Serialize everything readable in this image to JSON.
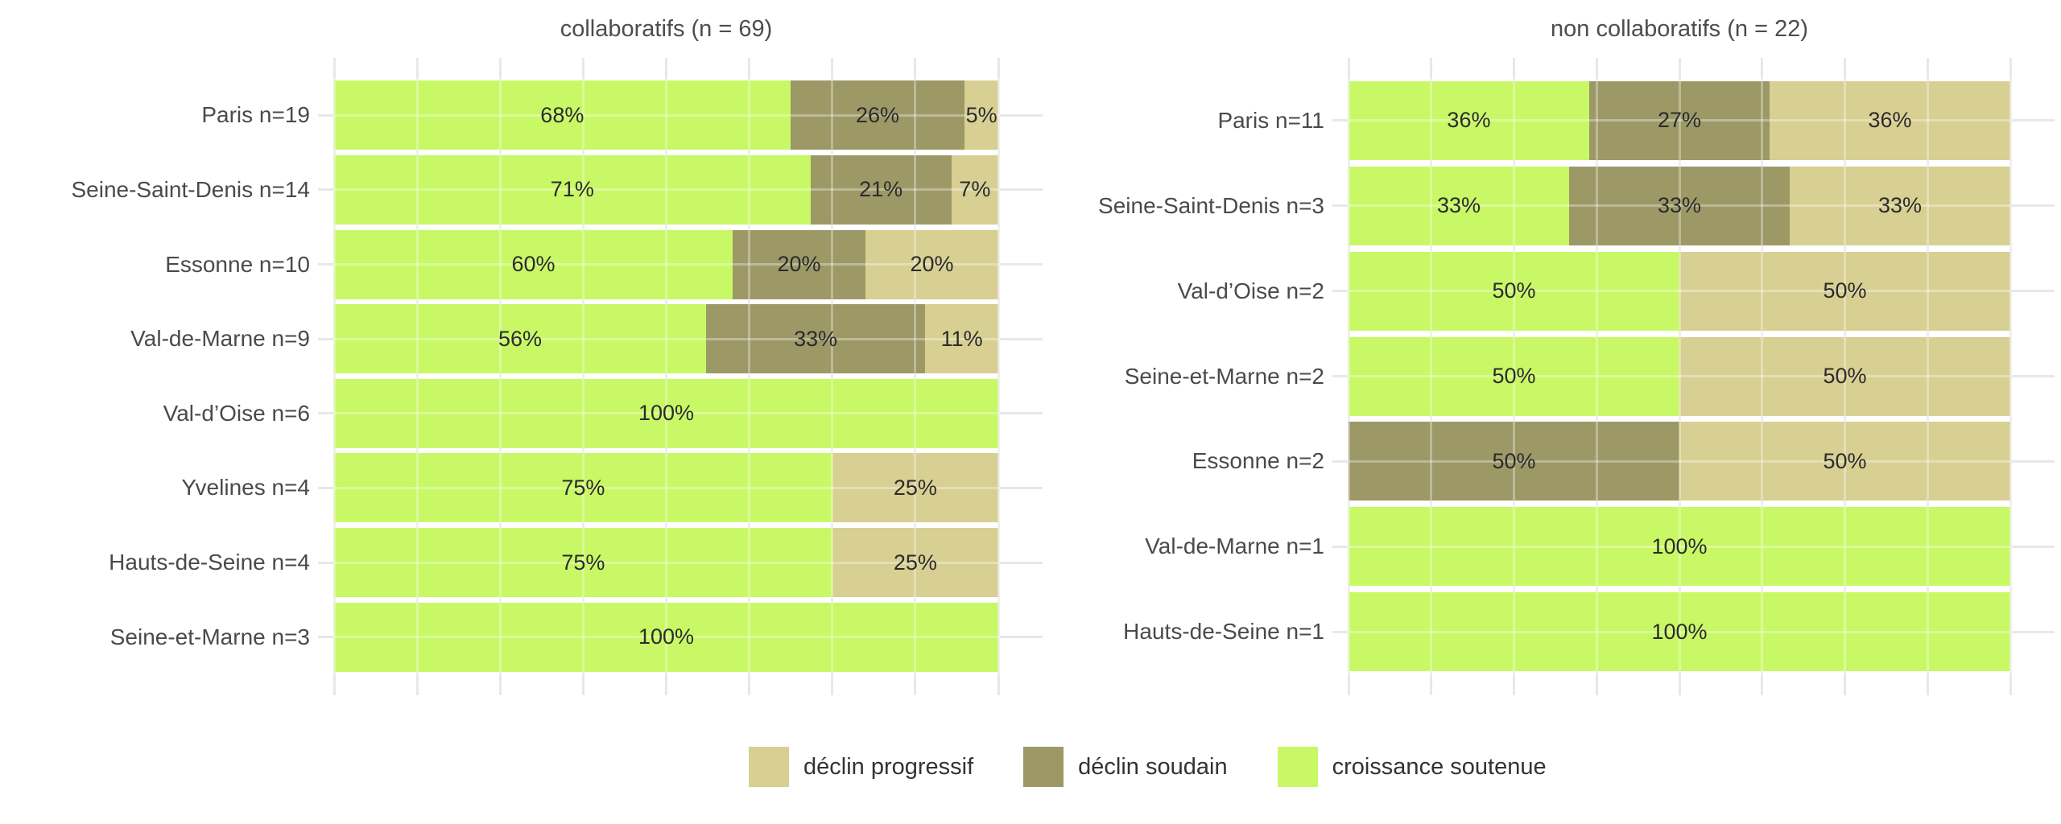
{
  "chart_data": {
    "type": "bar",
    "orientation": "horizontal",
    "stacking": "fill",
    "percent_suffix": "%",
    "xlim": [
      0,
      100
    ],
    "grid": true,
    "gridline_step_pct": 12.5,
    "legend_position": "bottom",
    "colors": {
      "croissance soutenue": "#c9f866",
      "déclin soudain": "#9c9966",
      "déclin progressif": "#d8cf92"
    },
    "grid_color": "#e8e8e8",
    "label_color": "#4a4a4a",
    "title_color": "#4d4d4d",
    "panels": [
      {
        "title": "collaboratifs (n = 69)",
        "rows": [
          {
            "label": "Paris n=19",
            "segments": [
              {
                "series": "croissance soutenue",
                "pct": 68
              },
              {
                "series": "déclin soudain",
                "pct": 26
              },
              {
                "series": "déclin progressif",
                "pct": 5
              }
            ]
          },
          {
            "label": "Seine-Saint-Denis n=14",
            "segments": [
              {
                "series": "croissance soutenue",
                "pct": 71
              },
              {
                "series": "déclin soudain",
                "pct": 21
              },
              {
                "series": "déclin progressif",
                "pct": 7
              }
            ]
          },
          {
            "label": "Essonne n=10",
            "segments": [
              {
                "series": "croissance soutenue",
                "pct": 60
              },
              {
                "series": "déclin soudain",
                "pct": 20
              },
              {
                "series": "déclin progressif",
                "pct": 20
              }
            ]
          },
          {
            "label": "Val-de-Marne n=9",
            "segments": [
              {
                "series": "croissance soutenue",
                "pct": 56
              },
              {
                "series": "déclin soudain",
                "pct": 33
              },
              {
                "series": "déclin progressif",
                "pct": 11
              }
            ]
          },
          {
            "label": "Val-d’Oise n=6",
            "segments": [
              {
                "series": "croissance soutenue",
                "pct": 100
              }
            ]
          },
          {
            "label": "Yvelines n=4",
            "segments": [
              {
                "series": "croissance soutenue",
                "pct": 75
              },
              {
                "series": "déclin progressif",
                "pct": 25
              }
            ]
          },
          {
            "label": "Hauts-de-Seine n=4",
            "segments": [
              {
                "series": "croissance soutenue",
                "pct": 75
              },
              {
                "series": "déclin progressif",
                "pct": 25
              }
            ]
          },
          {
            "label": "Seine-et-Marne n=3",
            "segments": [
              {
                "series": "croissance soutenue",
                "pct": 100
              }
            ]
          }
        ]
      },
      {
        "title": "non collaboratifs (n = 22)",
        "rows": [
          {
            "label": "Paris n=11",
            "segments": [
              {
                "series": "croissance soutenue",
                "pct": 36
              },
              {
                "series": "déclin soudain",
                "pct": 27
              },
              {
                "series": "déclin progressif",
                "pct": 36
              }
            ]
          },
          {
            "label": "Seine-Saint-Denis n=3",
            "segments": [
              {
                "series": "croissance soutenue",
                "pct": 33
              },
              {
                "series": "déclin soudain",
                "pct": 33
              },
              {
                "series": "déclin progressif",
                "pct": 33
              }
            ]
          },
          {
            "label": "Val-d’Oise n=2",
            "segments": [
              {
                "series": "croissance soutenue",
                "pct": 50
              },
              {
                "series": "déclin progressif",
                "pct": 50
              }
            ]
          },
          {
            "label": "Seine-et-Marne n=2",
            "segments": [
              {
                "series": "croissance soutenue",
                "pct": 50
              },
              {
                "series": "déclin progressif",
                "pct": 50
              }
            ]
          },
          {
            "label": "Essonne n=2",
            "segments": [
              {
                "series": "déclin soudain",
                "pct": 50
              },
              {
                "series": "déclin progressif",
                "pct": 50
              }
            ]
          },
          {
            "label": "Val-de-Marne n=1",
            "segments": [
              {
                "series": "croissance soutenue",
                "pct": 100
              }
            ]
          },
          {
            "label": "Hauts-de-Seine n=1",
            "segments": [
              {
                "series": "croissance soutenue",
                "pct": 100
              }
            ]
          }
        ]
      }
    ],
    "legend": [
      {
        "label": "déclin progressif",
        "color": "#d8cf92"
      },
      {
        "label": "déclin soudain",
        "color": "#9c9966"
      },
      {
        "label": "croissance soutenue",
        "color": "#c9f866"
      }
    ]
  }
}
